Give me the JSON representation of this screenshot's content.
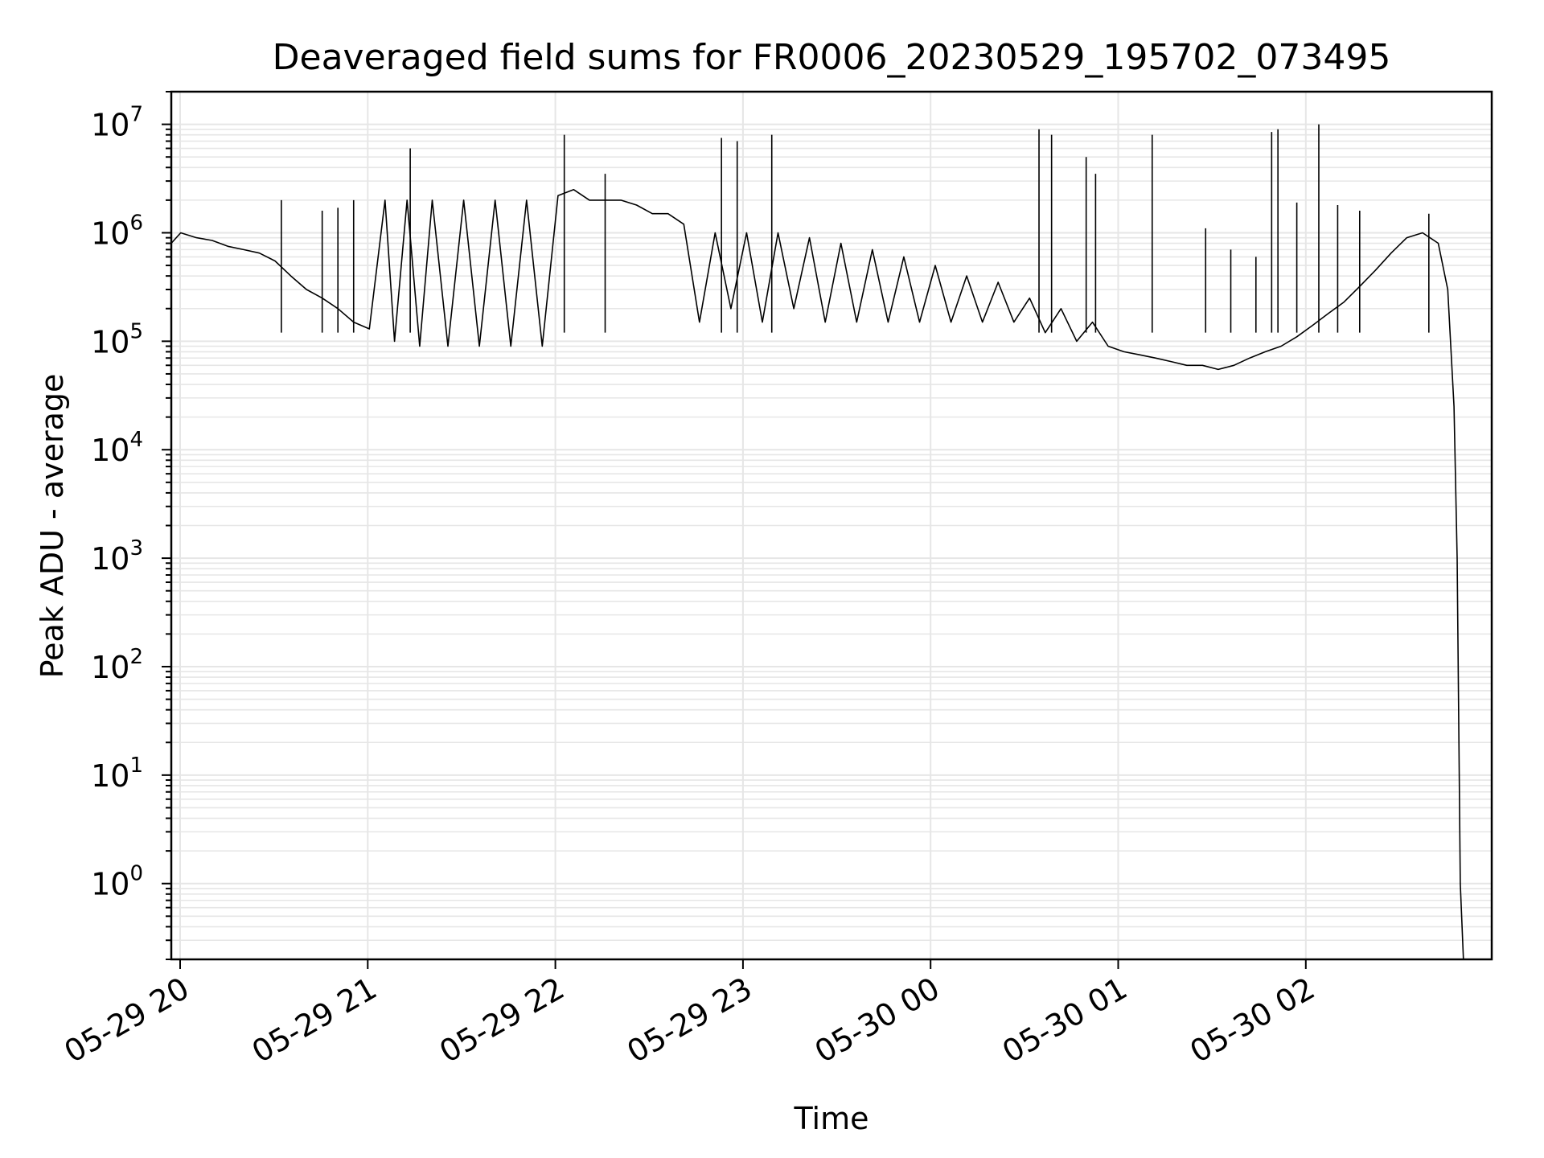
{
  "chart_data": {
    "type": "line",
    "title": "Deaveraged field sums for FR0006_20230529_195702_073495",
    "xlabel": "Time",
    "ylabel": "Peak ADU - average",
    "yscale": "log",
    "grid": true,
    "line_color": "#000000",
    "grid_color": "#e6e6e6",
    "x_ticks": [
      "05-29 20",
      "05-29 21",
      "05-29 22",
      "05-29 23",
      "05-30 00",
      "05-30 01",
      "05-30 02"
    ],
    "y_ticks": [
      {
        "base": "10",
        "exp": "0",
        "value": 1
      },
      {
        "base": "10",
        "exp": "1",
        "value": 10
      },
      {
        "base": "10",
        "exp": "2",
        "value": 100
      },
      {
        "base": "10",
        "exp": "3",
        "value": 1000
      },
      {
        "base": "10",
        "exp": "4",
        "value": 10000
      },
      {
        "base": "10",
        "exp": "5",
        "value": 100000
      },
      {
        "base": "10",
        "exp": "6",
        "value": 1000000
      },
      {
        "base": "10",
        "exp": "7",
        "value": 10000000
      }
    ],
    "xlim": [
      "2023-05-29T19:57",
      "2023-05-30T02:57"
    ],
    "ylim": [
      0.2,
      20000000
    ],
    "series": [
      {
        "points": [
          [
            "2023-05-29T19:57",
            800000
          ],
          [
            "2023-05-29T20:00",
            1000000
          ],
          [
            "2023-05-29T20:05",
            900000
          ],
          [
            "2023-05-29T20:10",
            850000
          ],
          [
            "2023-05-29T20:15",
            750000
          ],
          [
            "2023-05-29T20:20",
            700000
          ],
          [
            "2023-05-29T20:25",
            650000
          ],
          [
            "2023-05-29T20:30",
            550000
          ],
          [
            "2023-05-29T20:35",
            400000
          ],
          [
            "2023-05-29T20:40",
            300000
          ],
          [
            "2023-05-29T20:45",
            250000
          ],
          [
            "2023-05-29T20:50",
            200000
          ],
          [
            "2023-05-29T20:55",
            150000
          ],
          [
            "2023-05-29T21:00",
            130000
          ],
          [
            "2023-05-29T21:05",
            2000000
          ],
          [
            "2023-05-29T21:08",
            100000
          ],
          [
            "2023-05-29T21:12",
            2000000
          ],
          [
            "2023-05-29T21:16",
            90000
          ],
          [
            "2023-05-29T21:20",
            2000000
          ],
          [
            "2023-05-29T21:25",
            90000
          ],
          [
            "2023-05-29T21:30",
            2000000
          ],
          [
            "2023-05-29T21:35",
            90000
          ],
          [
            "2023-05-29T21:40",
            2000000
          ],
          [
            "2023-05-29T21:45",
            90000
          ],
          [
            "2023-05-29T21:50",
            2000000
          ],
          [
            "2023-05-29T21:55",
            90000
          ],
          [
            "2023-05-29T22:00",
            2200000
          ],
          [
            "2023-05-29T22:05",
            2500000
          ],
          [
            "2023-05-29T22:10",
            2000000
          ],
          [
            "2023-05-29T22:15",
            2000000
          ],
          [
            "2023-05-29T22:20",
            2000000
          ],
          [
            "2023-05-29T22:25",
            1800000
          ],
          [
            "2023-05-29T22:30",
            1500000
          ],
          [
            "2023-05-29T22:35",
            1500000
          ],
          [
            "2023-05-29T22:40",
            1200000
          ],
          [
            "2023-05-29T22:45",
            150000
          ],
          [
            "2023-05-29T22:50",
            1000000
          ],
          [
            "2023-05-29T22:55",
            200000
          ],
          [
            "2023-05-29T23:00",
            1000000
          ],
          [
            "2023-05-29T23:05",
            150000
          ],
          [
            "2023-05-29T23:10",
            1000000
          ],
          [
            "2023-05-29T23:15",
            200000
          ],
          [
            "2023-05-29T23:20",
            900000
          ],
          [
            "2023-05-29T23:25",
            150000
          ],
          [
            "2023-05-29T23:30",
            800000
          ],
          [
            "2023-05-29T23:35",
            150000
          ],
          [
            "2023-05-29T23:40",
            700000
          ],
          [
            "2023-05-29T23:45",
            150000
          ],
          [
            "2023-05-29T23:50",
            600000
          ],
          [
            "2023-05-29T23:55",
            150000
          ],
          [
            "2023-05-30T00:00",
            500000
          ],
          [
            "2023-05-30T00:05",
            150000
          ],
          [
            "2023-05-30T00:10",
            400000
          ],
          [
            "2023-05-30T00:15",
            150000
          ],
          [
            "2023-05-30T00:20",
            350000
          ],
          [
            "2023-05-30T00:25",
            150000
          ],
          [
            "2023-05-30T00:30",
            250000
          ],
          [
            "2023-05-30T00:35",
            120000
          ],
          [
            "2023-05-30T00:40",
            200000
          ],
          [
            "2023-05-30T00:45",
            100000
          ],
          [
            "2023-05-30T00:50",
            150000
          ],
          [
            "2023-05-30T00:55",
            90000
          ],
          [
            "2023-05-30T01:00",
            80000
          ],
          [
            "2023-05-30T01:05",
            75000
          ],
          [
            "2023-05-30T01:10",
            70000
          ],
          [
            "2023-05-30T01:15",
            65000
          ],
          [
            "2023-05-30T01:20",
            60000
          ],
          [
            "2023-05-30T01:25",
            60000
          ],
          [
            "2023-05-30T01:30",
            55000
          ],
          [
            "2023-05-30T01:35",
            60000
          ],
          [
            "2023-05-30T01:40",
            70000
          ],
          [
            "2023-05-30T01:45",
            80000
          ],
          [
            "2023-05-30T01:50",
            90000
          ],
          [
            "2023-05-30T01:55",
            110000
          ],
          [
            "2023-05-30T02:00",
            140000
          ],
          [
            "2023-05-30T02:05",
            180000
          ],
          [
            "2023-05-30T02:10",
            230000
          ],
          [
            "2023-05-30T02:15",
            320000
          ],
          [
            "2023-05-30T02:20",
            450000
          ],
          [
            "2023-05-30T02:25",
            650000
          ],
          [
            "2023-05-30T02:30",
            900000
          ],
          [
            "2023-05-30T02:35",
            1000000
          ],
          [
            "2023-05-30T02:40",
            800000
          ],
          [
            "2023-05-30T02:43",
            300000
          ],
          [
            "2023-05-30T02:45",
            25000
          ],
          [
            "2023-05-30T02:46",
            1000
          ],
          [
            "2023-05-30T02:47",
            1
          ],
          [
            "2023-05-30T02:48",
            0.2
          ]
        ],
        "spikes": [
          [
            "2023-05-29T20:32",
            2000000
          ],
          [
            "2023-05-29T20:45",
            1600000
          ],
          [
            "2023-05-29T20:50",
            1700000
          ],
          [
            "2023-05-29T20:55",
            2000000
          ],
          [
            "2023-05-29T21:13",
            6000000
          ],
          [
            "2023-05-29T22:02",
            8000000
          ],
          [
            "2023-05-29T22:15",
            3500000
          ],
          [
            "2023-05-29T22:52",
            7500000
          ],
          [
            "2023-05-29T22:57",
            7000000
          ],
          [
            "2023-05-29T23:08",
            8000000
          ],
          [
            "2023-05-30T00:33",
            9000000
          ],
          [
            "2023-05-30T00:37",
            8000000
          ],
          [
            "2023-05-30T00:48",
            5000000
          ],
          [
            "2023-05-30T00:51",
            3500000
          ],
          [
            "2023-05-30T01:09",
            8000000
          ],
          [
            "2023-05-30T01:26",
            1100000
          ],
          [
            "2023-05-30T01:34",
            700000
          ],
          [
            "2023-05-30T01:42",
            600000
          ],
          [
            "2023-05-30T01:47",
            8500000
          ],
          [
            "2023-05-30T01:49",
            9000000
          ],
          [
            "2023-05-30T01:55",
            1900000
          ],
          [
            "2023-05-30T02:02",
            10000000
          ],
          [
            "2023-05-30T02:08",
            1800000
          ],
          [
            "2023-05-30T02:15",
            1600000
          ],
          [
            "2023-05-30T02:37",
            1500000
          ]
        ]
      }
    ]
  }
}
